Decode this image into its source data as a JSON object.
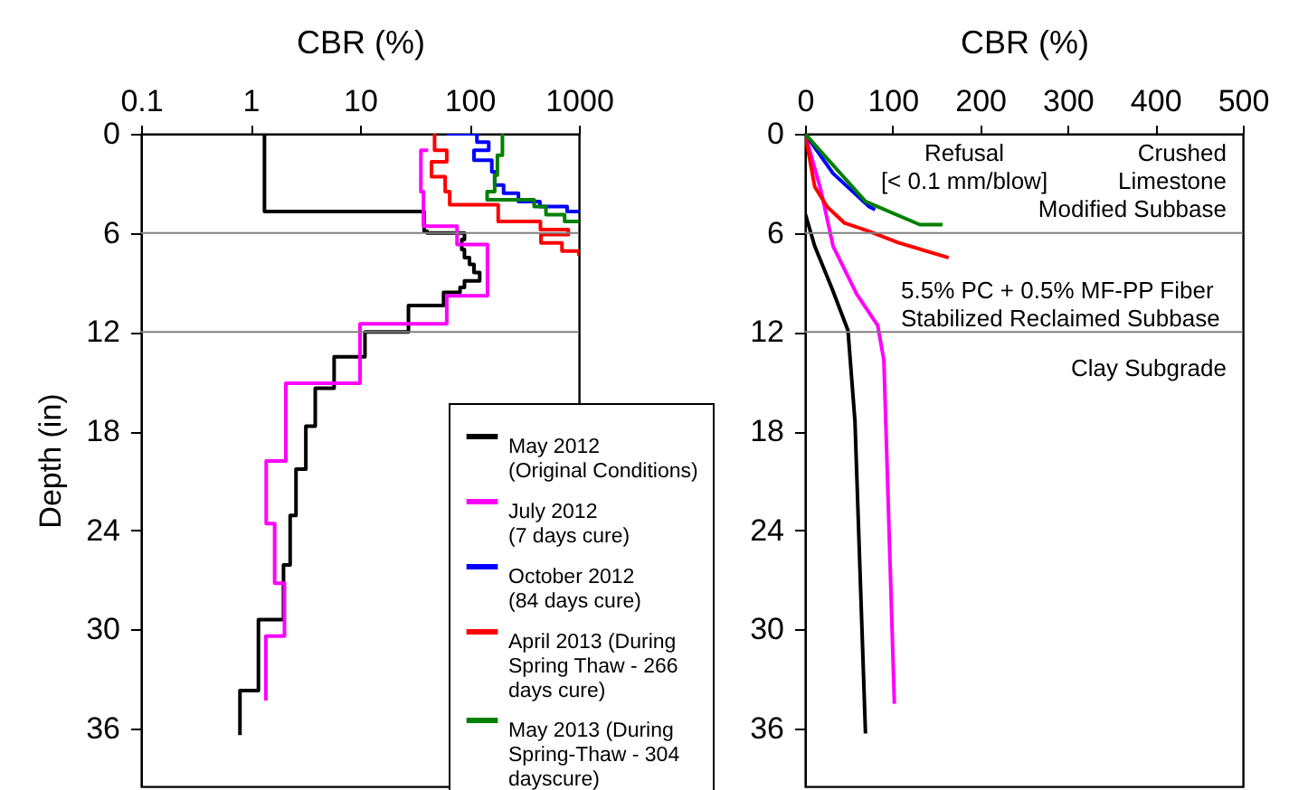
{
  "chart_data": [
    {
      "type": "line",
      "xlabel": "CBR (%)",
      "ylabel": "Depth (in)",
      "log": "x",
      "xlim": [
        0.1,
        1000
      ],
      "xticks": [
        0.1,
        1,
        10,
        100,
        1000
      ],
      "ylim": [
        39.5,
        0
      ],
      "yticks": [
        0,
        6,
        12,
        18,
        24,
        30,
        36
      ],
      "legend": "bottom right",
      "ref_lines": [
        {
          "axis": "y",
          "value": 6,
          "color": "#808080"
        },
        {
          "axis": "y",
          "value": 12,
          "color": "#808080"
        }
      ],
      "series": [
        {
          "name": "May 2012\n(Original Conditions)",
          "color": "#000000",
          "x": [
            1.34,
            1.34,
            38.5,
            38.5,
            41,
            41,
            90,
            90,
            85,
            85,
            90,
            90,
            100,
            100,
            110,
            110,
            124,
            124,
            90,
            90,
            82,
            82,
            58,
            58,
            27.7,
            27.7,
            11.1,
            11.1,
            5.8,
            5.8,
            3.9,
            3.9,
            3.2,
            3.2,
            2.6,
            2.6,
            2.3,
            2.3,
            2.0,
            2.0,
            1.18,
            1.18,
            0.8,
            0.8
          ],
          "values": [
            0,
            4.7,
            4.7,
            5.9,
            5.9,
            6.0,
            6.0,
            6.4,
            6.4,
            7.0,
            7.0,
            7.5,
            7.5,
            7.9,
            7.9,
            8.4,
            8.4,
            8.9,
            8.9,
            9.3,
            9.3,
            9.6,
            9.6,
            10.4,
            10.4,
            12.0,
            12.0,
            13.5,
            13.5,
            15.4,
            15.4,
            17.7,
            17.7,
            20.3,
            20.3,
            23.1,
            23.1,
            26.1,
            26.1,
            29.4,
            29.4,
            33.7,
            33.7,
            36.4
          ]
        },
        {
          "name": "July 2012\n(7 days cure)",
          "color": "#ff00ff",
          "x": [
            42,
            36,
            36,
            38,
            38,
            77,
            77,
            146,
            146,
            62,
            62,
            10,
            10,
            2.1,
            2.1,
            1.39,
            1.39,
            1.66,
            1.66,
            2.04,
            2.04,
            1.38,
            1.38
          ],
          "values": [
            1.0,
            1.0,
            3.5,
            3.5,
            5.6,
            5.6,
            6.7,
            6.7,
            9.8,
            9.8,
            11.5,
            11.5,
            15.1,
            15.1,
            19.8,
            19.8,
            23.6,
            23.6,
            27.2,
            27.2,
            30.4,
            30.4,
            34.3
          ]
        },
        {
          "name": "October 2012\n(84 days cure)",
          "color": "#0000ff",
          "x": [
            62,
            117,
            117,
            150,
            150,
            110,
            110,
            160,
            160,
            170,
            170,
            205,
            205,
            280,
            280,
            440,
            440,
            780,
            780,
            1000
          ],
          "values": [
            0,
            0,
            0.5,
            0.5,
            1.0,
            1.0,
            1.6,
            1.6,
            2.3,
            2.3,
            3.1,
            3.1,
            3.6,
            3.6,
            4.1,
            4.1,
            4.4,
            4.4,
            4.7,
            4.7
          ]
        },
        {
          "name": "April 2013 (During\nSpring Thaw - 266\ndays cure)",
          "color": "#ff0000",
          "x": [
            48,
            48,
            62,
            62,
            45,
            45,
            60,
            60,
            66,
            66,
            183,
            183,
            445,
            445,
            800,
            800,
            450,
            450,
            700,
            700,
            1000,
            1000
          ],
          "values": [
            0,
            1.0,
            1.0,
            1.7,
            1.7,
            2.6,
            2.6,
            3.5,
            3.5,
            4.3,
            4.3,
            5.3,
            5.3,
            5.8,
            5.8,
            6.1,
            6.1,
            6.6,
            6.6,
            7.1,
            7.1,
            7.4
          ]
        },
        {
          "name": "May 2013 (During\nSpring-Thaw - 304\ndayscure)",
          "color": "#008000",
          "x": [
            200,
            200,
            180,
            180,
            170,
            170,
            145,
            145,
            390,
            390,
            500,
            500,
            740,
            740,
            1000
          ],
          "values": [
            0,
            1.3,
            1.3,
            2.5,
            2.5,
            3.5,
            3.5,
            4.0,
            4.0,
            4.4,
            4.4,
            4.9,
            4.9,
            5.3,
            5.3
          ]
        }
      ]
    },
    {
      "type": "line",
      "xlabel": "CBR (%)",
      "xlim": [
        0,
        500
      ],
      "xticks": [
        0,
        100,
        200,
        300,
        400,
        500
      ],
      "ylim": [
        39.5,
        0
      ],
      "yticks": [
        0,
        6,
        12,
        18,
        24,
        30,
        36
      ],
      "ref_lines": [
        {
          "axis": "y",
          "value": 6,
          "color": "#808080"
        },
        {
          "axis": "y",
          "value": 12,
          "color": "#808080"
        }
      ],
      "annotations": [
        "Refusal\n[< 0.1 mm/blow]",
        "Crushed\nLimestone\nModified Subbase",
        "5.5% PC + 0.5% MF-PP Fiber\nStabilized Reclaimed Subbase",
        "Clay Subgrade"
      ],
      "series": [
        {
          "color": "#000000",
          "x": [
            0,
            11,
            31,
            49,
            57,
            69
          ],
          "values": [
            4.8,
            6.8,
            9.4,
            11.9,
            17.4,
            36.3
          ]
        },
        {
          "color": "#ff00ff",
          "x": [
            0,
            18,
            32,
            59,
            83,
            90,
            102
          ],
          "values": [
            0,
            3.4,
            6.8,
            9.7,
            11.6,
            13.7,
            34.5
          ]
        },
        {
          "color": "#0000ff",
          "x": [
            0,
            32,
            73,
            80
          ],
          "values": [
            0,
            2.4,
            4.4,
            4.6
          ]
        },
        {
          "color": "#ff0000",
          "x": [
            0,
            11,
            25,
            45,
            73,
            107,
            164
          ],
          "values": [
            0,
            3.2,
            4.4,
            5.4,
            5.9,
            6.6,
            7.5
          ]
        },
        {
          "color": "#008000",
          "x": [
            0,
            69,
            131,
            157
          ],
          "values": [
            0,
            4.1,
            5.5,
            5.5
          ]
        }
      ]
    }
  ]
}
